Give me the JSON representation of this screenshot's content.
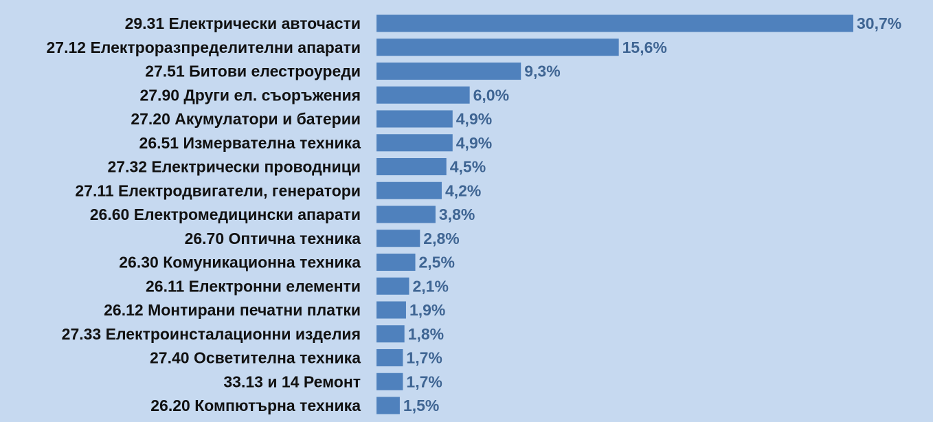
{
  "chart_data": {
    "type": "bar",
    "orientation": "horizontal",
    "categories": [
      "29.31 Електрически авточасти",
      "27.12 Електроразпределителни апарати",
      "27.51 Битови елестроуреди",
      "27.90 Други ел. съоръжения",
      "27.20 Акумулатори и батерии",
      "26.51 Измервателна техника",
      "27.32 Електрически проводници",
      "27.11 Електродвигатели, генератори",
      "26.60 Електромедицински апарати",
      "26.70 Оптична техника",
      "26.30 Комуникационна техника",
      "26.11 Електронни елементи",
      "26.12 Монтирани печатни платки",
      "27.33 Електроинсталационни изделия",
      "27.40 Осветителна техника",
      "33.13 и 14 Ремонт",
      "26.20 Компютърна техника"
    ],
    "values": [
      30.7,
      15.6,
      9.3,
      6.0,
      4.9,
      4.9,
      4.5,
      4.2,
      3.8,
      2.8,
      2.5,
      2.1,
      1.9,
      1.8,
      1.7,
      1.7,
      1.5
    ],
    "data_labels": [
      "30,7%",
      "15,6%",
      "9,3%",
      "6,0%",
      "4,9%",
      "4,9%",
      "4,5%",
      "4,2%",
      "3,8%",
      "2,8%",
      "2,5%",
      "2,1%",
      "1,9%",
      "1,8%",
      "1,7%",
      "1,7%",
      "1,5%"
    ],
    "title": "",
    "xlabel": "",
    "ylabel": "",
    "xlim": [
      0,
      30.7
    ],
    "grid": false,
    "legend": "none",
    "colors": {
      "bar": "#4f81bd",
      "value_label": "#3f6593",
      "category_label": "#111111",
      "background": "#c6d9f0"
    }
  }
}
